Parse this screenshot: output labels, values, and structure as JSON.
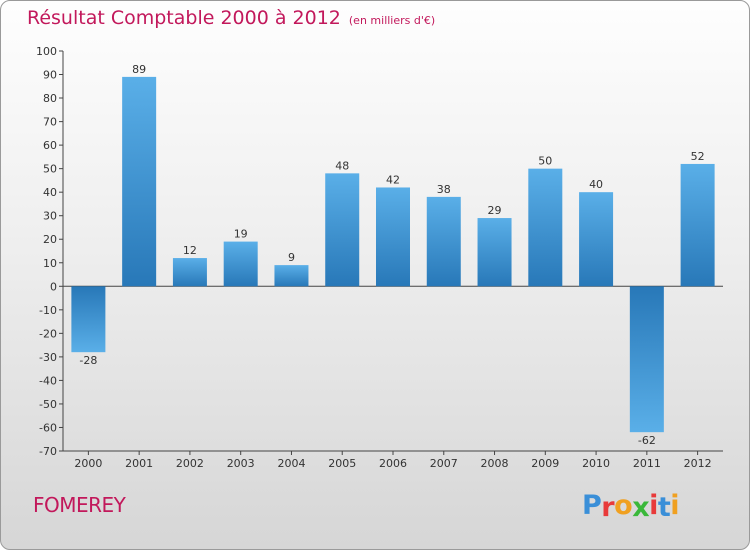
{
  "chart_data": {
    "type": "bar",
    "title": "Résultat Comptable 2000 à 2012",
    "subtitle": "(en milliers d'€)",
    "xlabel": "",
    "ylabel": "",
    "categories": [
      "2000",
      "2001",
      "2002",
      "2003",
      "2004",
      "2005",
      "2006",
      "2007",
      "2008",
      "2009",
      "2010",
      "2011",
      "2012"
    ],
    "values": [
      -28,
      89,
      12,
      19,
      9,
      48,
      42,
      38,
      29,
      50,
      40,
      -62,
      52
    ],
    "ylim": [
      -70,
      100
    ],
    "ytick_step": 10,
    "grid": false,
    "bar_color_dark": "#2878b8",
    "bar_color_light": "#5aafe8"
  },
  "footer": {
    "municipality": "FOMEREY",
    "brand": {
      "letters": [
        "P",
        "r",
        "o",
        "x",
        "i",
        "t",
        "i"
      ],
      "colors": [
        "#3a8fd8",
        "#e83a3a",
        "#f0a020",
        "#3ab83a",
        "#e83a3a",
        "#3a8fd8",
        "#f0a020"
      ]
    }
  },
  "colors": {
    "title": "#c2185b",
    "axis": "#333333"
  }
}
